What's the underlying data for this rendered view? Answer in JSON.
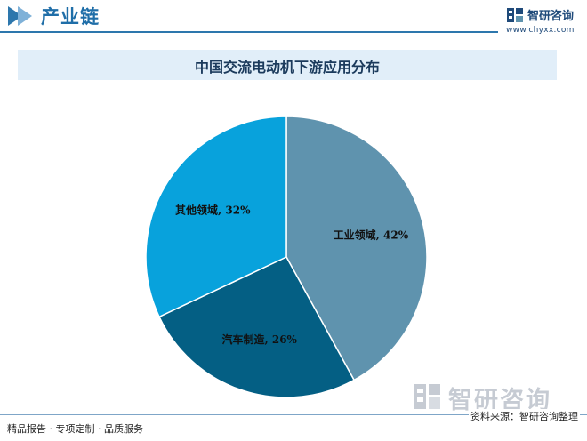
{
  "header": {
    "title": "产业链"
  },
  "brand": {
    "name": "智研咨询",
    "url": "www.chyxx.com",
    "logo_icon": "chart-logo-icon"
  },
  "watermark": {
    "text": "智研咨询"
  },
  "footer": {
    "left": "精品报告 · 专项定制 · 品质服务",
    "right": "资料来源：智研咨询整理"
  },
  "colors": {
    "accent": "#2d77ad",
    "title_band": "#e1eef9"
  },
  "chart_data": {
    "type": "pie",
    "title": "中国交流电动机下游应用分布",
    "start_angle_deg": 0,
    "direction": "clockwise",
    "slices": [
      {
        "label": "工业领域, 42%",
        "value": 42,
        "color": "#5f93ae"
      },
      {
        "label": "汽车制造, 26%",
        "value": 26,
        "color": "#045f84"
      },
      {
        "label": "其他领域, 32%",
        "value": 32,
        "color": "#08a2dc"
      }
    ]
  }
}
